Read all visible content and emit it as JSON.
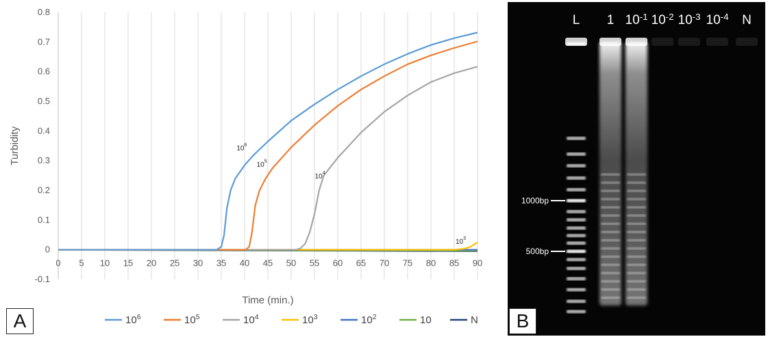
{
  "figure": {
    "panel_a_label": "A",
    "panel_b_label": "B"
  },
  "chart_data": {
    "type": "line",
    "xlabel": "Time (min.)",
    "ylabel": "Turbidity",
    "xlim": [
      0,
      90
    ],
    "ylim": [
      -0.1,
      0.8
    ],
    "x_ticks": [
      0,
      5,
      10,
      15,
      20,
      25,
      30,
      35,
      40,
      45,
      50,
      55,
      60,
      65,
      70,
      75,
      80,
      85,
      90
    ],
    "y_ticks": [
      -0.1,
      0,
      0.1,
      0.2,
      0.3,
      0.4,
      0.5,
      0.6,
      0.7,
      0.8
    ],
    "y_tick_labels": [
      "-0.1",
      "0",
      "0.1",
      "0.2",
      "0.3",
      "0.4",
      "0.5",
      "0.6",
      "0.7",
      "0.8"
    ],
    "grid": "vertical",
    "legend_position": "bottom",
    "series": [
      {
        "name": "10⁶",
        "label_base": "10",
        "label_exp": "6",
        "color": "#5B9BD5",
        "points": [
          [
            0,
            0
          ],
          [
            34,
            0
          ],
          [
            35,
            0.01
          ],
          [
            35.6,
            0.05
          ],
          [
            36.2,
            0.14
          ],
          [
            37,
            0.2
          ],
          [
            38,
            0.24
          ],
          [
            40,
            0.285
          ],
          [
            42,
            0.32
          ],
          [
            45,
            0.365
          ],
          [
            50,
            0.435
          ],
          [
            55,
            0.49
          ],
          [
            60,
            0.54
          ],
          [
            65,
            0.585
          ],
          [
            70,
            0.625
          ],
          [
            75,
            0.66
          ],
          [
            80,
            0.69
          ],
          [
            85,
            0.713
          ],
          [
            90,
            0.732
          ]
        ]
      },
      {
        "name": "10⁵",
        "label_base": "10",
        "label_exp": "5",
        "color": "#ED7D31",
        "points": [
          [
            0,
            0
          ],
          [
            40.2,
            0
          ],
          [
            41,
            0.01
          ],
          [
            41.6,
            0.06
          ],
          [
            42.3,
            0.15
          ],
          [
            43.2,
            0.2
          ],
          [
            44.5,
            0.24
          ],
          [
            46,
            0.275
          ],
          [
            48,
            0.31
          ],
          [
            50,
            0.345
          ],
          [
            55,
            0.42
          ],
          [
            60,
            0.485
          ],
          [
            65,
            0.54
          ],
          [
            70,
            0.585
          ],
          [
            75,
            0.625
          ],
          [
            80,
            0.655
          ],
          [
            85,
            0.68
          ],
          [
            90,
            0.702
          ]
        ]
      },
      {
        "name": "10⁴",
        "label_base": "10",
        "label_exp": "4",
        "color": "#A5A5A5",
        "points": [
          [
            0,
            0
          ],
          [
            51,
            0
          ],
          [
            52,
            0.005
          ],
          [
            53,
            0.02
          ],
          [
            54,
            0.06
          ],
          [
            55,
            0.12
          ],
          [
            56,
            0.2
          ],
          [
            57,
            0.25
          ],
          [
            58.5,
            0.28
          ],
          [
            60,
            0.31
          ],
          [
            65,
            0.395
          ],
          [
            70,
            0.465
          ],
          [
            75,
            0.52
          ],
          [
            80,
            0.565
          ],
          [
            85,
            0.595
          ],
          [
            90,
            0.617
          ]
        ]
      },
      {
        "name": "10³",
        "label_base": "10",
        "label_exp": "3",
        "color": "#FFC000",
        "points": [
          [
            0,
            0
          ],
          [
            85,
            0
          ],
          [
            87,
            0.003
          ],
          [
            88.5,
            0.01
          ],
          [
            90,
            0.025
          ]
        ]
      },
      {
        "name": "10²",
        "label_base": "10",
        "label_exp": "2",
        "color": "#4472C4",
        "points": [
          [
            0,
            0
          ],
          [
            90,
            0
          ]
        ]
      },
      {
        "name": "10",
        "label_base": "10",
        "label_exp": "",
        "color": "#70AD47",
        "points": [
          [
            0,
            0
          ],
          [
            90,
            -0.003
          ]
        ]
      },
      {
        "name": "N",
        "label_base": "N",
        "label_exp": "",
        "color": "#264478",
        "points": [
          [
            0,
            0
          ],
          [
            90,
            -0.005
          ]
        ]
      }
    ],
    "annotations": [
      {
        "base": "10",
        "exp": "6",
        "x": 40.5,
        "y": 0.335
      },
      {
        "base": "10",
        "exp": "5",
        "x": 44.8,
        "y": 0.28
      },
      {
        "base": "10",
        "exp": "4",
        "x": 57.3,
        "y": 0.24
      },
      {
        "base": "10",
        "exp": "3",
        "x": 87.5,
        "y": 0.02
      }
    ]
  },
  "gel": {
    "lanes": [
      {
        "label": "L",
        "exp": ""
      },
      {
        "label": "1",
        "exp": ""
      },
      {
        "label": "10",
        "exp": "-1"
      },
      {
        "label": "10",
        "exp": "-2"
      },
      {
        "label": "10",
        "exp": "-3"
      },
      {
        "label": "10",
        "exp": "-4"
      },
      {
        "label": "N",
        "exp": ""
      }
    ],
    "markers": [
      {
        "label": "1000bp"
      },
      {
        "label": "500bp"
      }
    ]
  }
}
